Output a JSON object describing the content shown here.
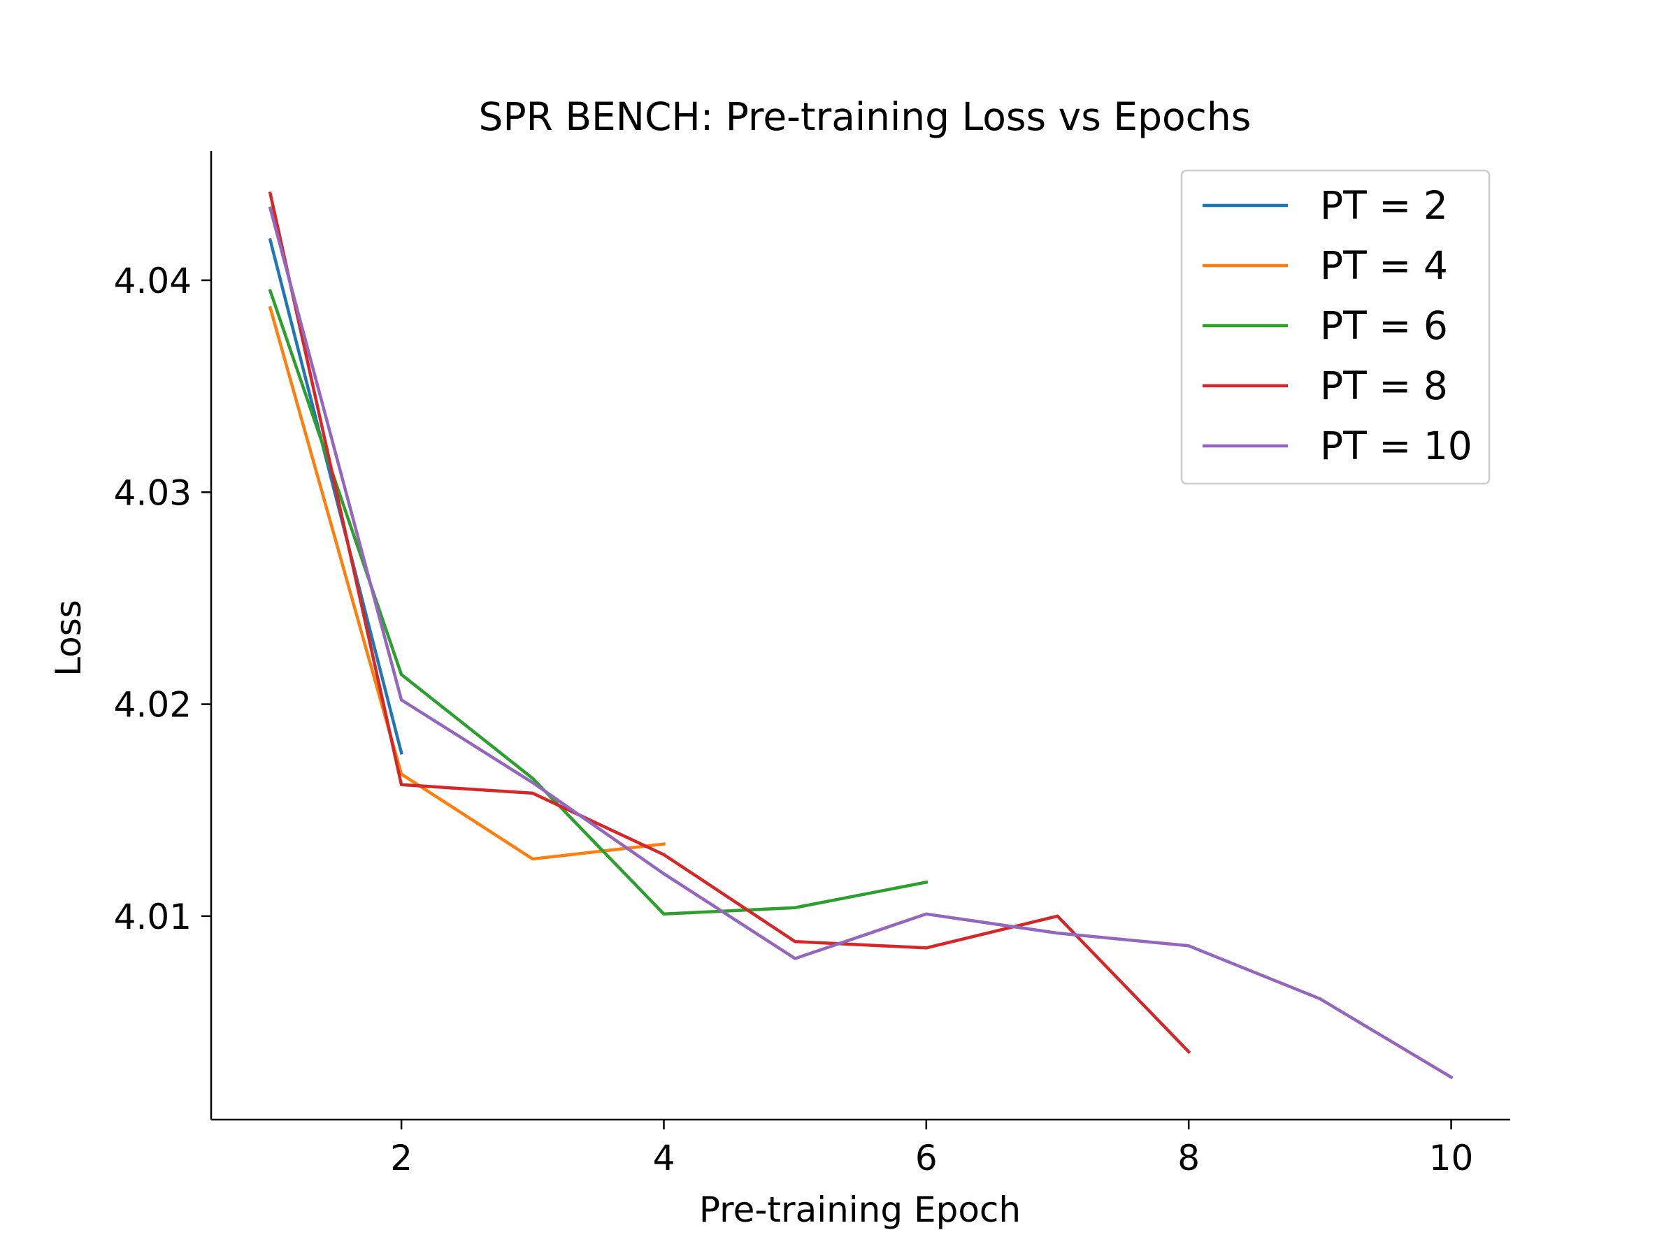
{
  "chart_data": {
    "type": "line",
    "title": "SPR BENCH: Pre-training Loss vs Epochs",
    "xlabel": "Pre-training Epoch",
    "ylabel": "Loss",
    "xlim": [
      0.55,
      10.45
    ],
    "ylim": [
      4.0004,
      4.0461
    ],
    "xticks": [
      2,
      4,
      6,
      8,
      10
    ],
    "xtick_labels": [
      "2",
      "4",
      "6",
      "8",
      "10"
    ],
    "yticks": [
      4.01,
      4.02,
      4.03,
      4.04
    ],
    "ytick_labels": [
      "4.01",
      "4.02",
      "4.03",
      "4.04"
    ],
    "grid": false,
    "legend_position": "top-right",
    "series": [
      {
        "name": "PT = 2",
        "color": "#1f77b4",
        "x": [
          1,
          2
        ],
        "y": [
          4.0419,
          4.0177
        ]
      },
      {
        "name": "PT = 4",
        "color": "#ff7f0e",
        "x": [
          1,
          2,
          3,
          4
        ],
        "y": [
          4.0387,
          4.0167,
          4.0127,
          4.0134
        ]
      },
      {
        "name": "PT = 6",
        "color": "#2ca02c",
        "x": [
          1,
          2,
          3,
          4,
          5,
          6
        ],
        "y": [
          4.0395,
          4.0214,
          4.0165,
          4.0101,
          4.0104,
          4.0116
        ]
      },
      {
        "name": "PT = 8",
        "color": "#d62728",
        "x": [
          1,
          2,
          3,
          4,
          5,
          6,
          7,
          8
        ],
        "y": [
          4.0441,
          4.0162,
          4.0158,
          4.0129,
          4.0088,
          4.0085,
          4.01,
          4.0036
        ]
      },
      {
        "name": "PT = 10",
        "color": "#9467bd",
        "x": [
          1,
          2,
          3,
          4,
          5,
          6,
          7,
          8,
          9,
          10
        ],
        "y": [
          4.0434,
          4.0202,
          4.0163,
          4.012,
          4.008,
          4.0101,
          4.0092,
          4.0086,
          4.0061,
          4.0024
        ]
      }
    ]
  }
}
